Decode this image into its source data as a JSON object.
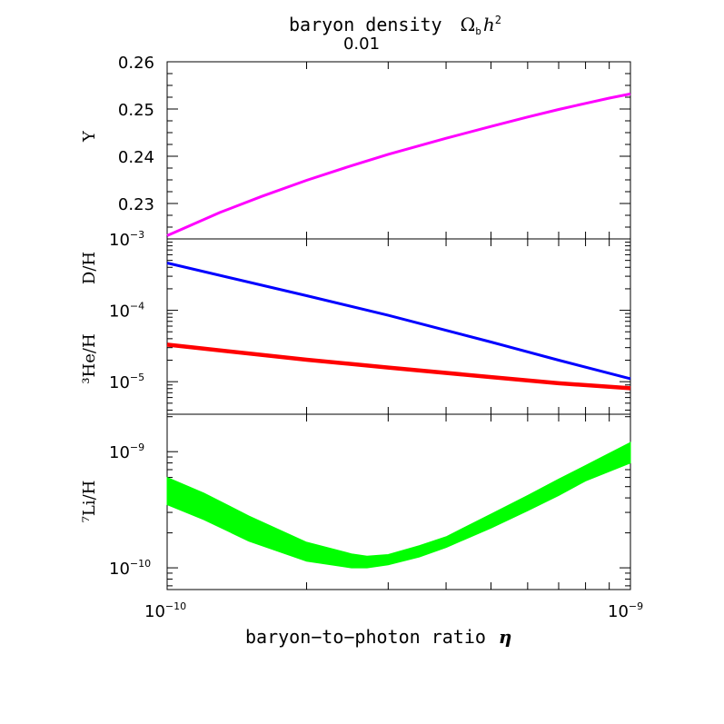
{
  "header": {
    "title": "baryon density",
    "title_symbol": "Ω",
    "title_subscript": "b",
    "title_h": "h",
    "title_exp": "2",
    "top_tick_label": "0.01"
  },
  "x_axis": {
    "label": "baryon−to−photon ratio",
    "symbol": "η",
    "tick_labels": [
      {
        "base": "10",
        "exp": "−10"
      },
      {
        "base": "10",
        "exp": "−9"
      }
    ]
  },
  "chart_data": [
    {
      "type": "line",
      "panel": "helium-4",
      "ylabel": "Y",
      "xscale": "log",
      "xlim": [
        1e-10,
        1e-09
      ],
      "ylim": [
        0.2225,
        0.26
      ],
      "yticks": [
        "0.23",
        "0.24",
        "0.25",
        "0.26"
      ],
      "series": [
        {
          "name": "Y",
          "color": "#ff00ff",
          "x": [
            1e-10,
            1.3e-10,
            1.6e-10,
            2e-10,
            2.5e-10,
            3e-10,
            4e-10,
            5e-10,
            6e-10,
            7e-10,
            8e-10,
            9e-10,
            1e-09
          ],
          "values": [
            0.2232,
            0.2281,
            0.2315,
            0.2349,
            0.238,
            0.2404,
            0.2438,
            0.2463,
            0.2483,
            0.2499,
            0.2512,
            0.2523,
            0.2532
          ]
        }
      ]
    },
    {
      "type": "line",
      "panel": "deuterium-helium-3",
      "ylabels": [
        "D/H",
        "³He/H"
      ],
      "xscale": "log",
      "yscale": "log",
      "xlim": [
        1e-10,
        1e-09
      ],
      "ylim": [
        3.5e-06,
        0.001
      ],
      "yticks": [
        {
          "base": "10",
          "exp": "−3"
        },
        {
          "base": "10",
          "exp": "−4"
        },
        {
          "base": "10",
          "exp": "−5"
        }
      ],
      "series": [
        {
          "name": "D/H",
          "color": "#0000ff",
          "x": [
            1e-10,
            2e-10,
            3e-10,
            5e-10,
            7e-10,
            1e-09
          ],
          "values": [
            0.00046,
            0.00016,
            8.5e-05,
            3.6e-05,
            2e-05,
            1.1e-05
          ]
        },
        {
          "name": "³He/H",
          "color": "#ff0000",
          "x": [
            1e-10,
            2e-10,
            3e-10,
            5e-10,
            7e-10,
            1e-09
          ],
          "values": [
            3.3e-05,
            2.03e-05,
            1.58e-05,
            1.16e-05,
            9.5e-06,
            8.1e-06
          ]
        }
      ]
    },
    {
      "type": "area",
      "panel": "lithium-7",
      "ylabel": "⁷Li/H",
      "xscale": "log",
      "yscale": "log",
      "xlim": [
        1e-10,
        1e-09
      ],
      "ylim": [
        6.5e-11,
        2.1e-09
      ],
      "yticks": [
        {
          "base": "10",
          "exp": "−9"
        },
        {
          "base": "10",
          "exp": "−10"
        }
      ],
      "series": [
        {
          "name": "⁷Li/H band",
          "color": "#00ff00",
          "x": [
            1e-10,
            1.2e-10,
            1.5e-10,
            2e-10,
            2.5e-10,
            2.7e-10,
            3e-10,
            3.5e-10,
            4e-10,
            5e-10,
            6e-10,
            7e-10,
            8e-10,
            1e-09
          ],
          "lower": [
            3.5e-10,
            2.6e-10,
            1.7e-10,
            1.14e-10,
            1e-10,
            1e-10,
            1.06e-10,
            1.24e-10,
            1.5e-10,
            2.2e-10,
            3.1e-10,
            4.2e-10,
            5.6e-10,
            8e-10
          ],
          "upper": [
            6e-10,
            4.4e-10,
            2.8e-10,
            1.66e-10,
            1.32e-10,
            1.26e-10,
            1.3e-10,
            1.55e-10,
            1.85e-10,
            2.9e-10,
            4.2e-10,
            5.8e-10,
            7.6e-10,
            1.2e-09
          ]
        }
      ]
    }
  ]
}
